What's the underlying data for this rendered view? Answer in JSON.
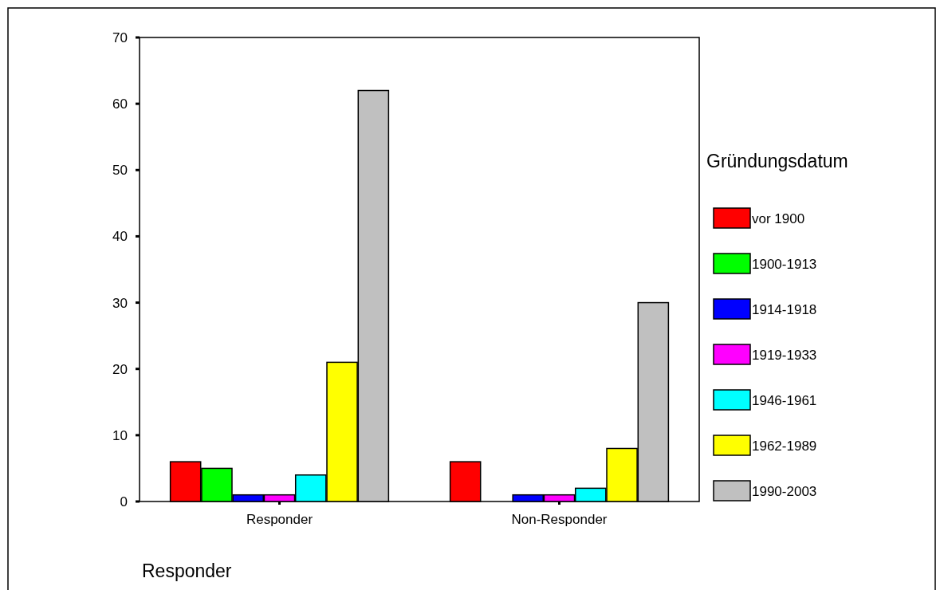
{
  "chart_data": {
    "type": "bar",
    "xlabel": "Responder",
    "legend_title": "Gründungsdatum",
    "categories": [
      "Responder",
      "Non-Responder"
    ],
    "series": [
      {
        "name": "vor 1900",
        "color": "#ff0000",
        "values": [
          6,
          6
        ]
      },
      {
        "name": "1900-1913",
        "color": "#00ff00",
        "values": [
          5,
          null
        ]
      },
      {
        "name": "1914-1918",
        "color": "#0000ff",
        "values": [
          1,
          1
        ]
      },
      {
        "name": "1919-1933",
        "color": "#ff00ff",
        "values": [
          1,
          1
        ]
      },
      {
        "name": "1946-1961",
        "color": "#00ffff",
        "values": [
          4,
          2
        ]
      },
      {
        "name": "1962-1989",
        "color": "#ffff00",
        "values": [
          21,
          8
        ]
      },
      {
        "name": "1990-2003",
        "color": "#c0c0c0",
        "values": [
          62,
          30
        ]
      }
    ],
    "ylim": [
      0,
      70
    ],
    "yticks": [
      0,
      10,
      20,
      30,
      40,
      50,
      60,
      70
    ],
    "grid": false,
    "legend": "right"
  }
}
